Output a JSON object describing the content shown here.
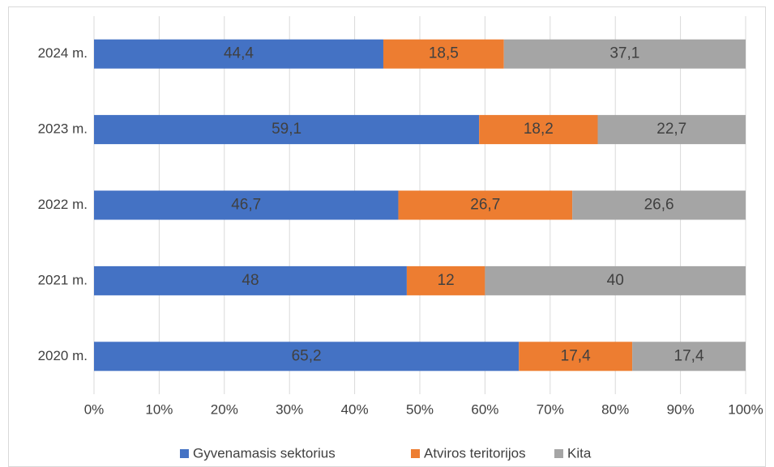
{
  "chart_data": {
    "type": "stacked-bar-horizontal",
    "categories": [
      "2024 m.",
      "2023 m.",
      "2022 m.",
      "2021 m.",
      "2020 m."
    ],
    "series": [
      {
        "name": "Gyvenamasis sektorius",
        "color": "#4472c4",
        "values": [
          44.4,
          59.1,
          46.7,
          48,
          65.2
        ],
        "value_labels": [
          "44,4",
          "59,1",
          "46,7",
          "48",
          "65,2"
        ]
      },
      {
        "name": "Atviros teritorijos",
        "color": "#ed7d31",
        "values": [
          18.5,
          18.2,
          26.7,
          12,
          17.4
        ],
        "value_labels": [
          "18,5",
          "18,2",
          "26,7",
          "12",
          "17,4"
        ]
      },
      {
        "name": "Kita",
        "color": "#a5a5a5",
        "values": [
          37.1,
          22.7,
          26.6,
          40,
          17.4
        ],
        "value_labels": [
          "37,1",
          "22,7",
          "26,6",
          "40",
          "17,4"
        ]
      }
    ],
    "xlim": [
      0,
      100
    ],
    "xticks": [
      {
        "value": 0,
        "label": "0%"
      },
      {
        "value": 10,
        "label": "10%"
      },
      {
        "value": 20,
        "label": "20%"
      },
      {
        "value": 30,
        "label": "30%"
      },
      {
        "value": 40,
        "label": "40%"
      },
      {
        "value": 50,
        "label": "50%"
      },
      {
        "value": 60,
        "label": "60%"
      },
      {
        "value": 70,
        "label": "70%"
      },
      {
        "value": 80,
        "label": "80%"
      },
      {
        "value": 90,
        "label": "90%"
      },
      {
        "value": 100,
        "label": "100%"
      }
    ],
    "grid": true,
    "legend": "bottom"
  }
}
